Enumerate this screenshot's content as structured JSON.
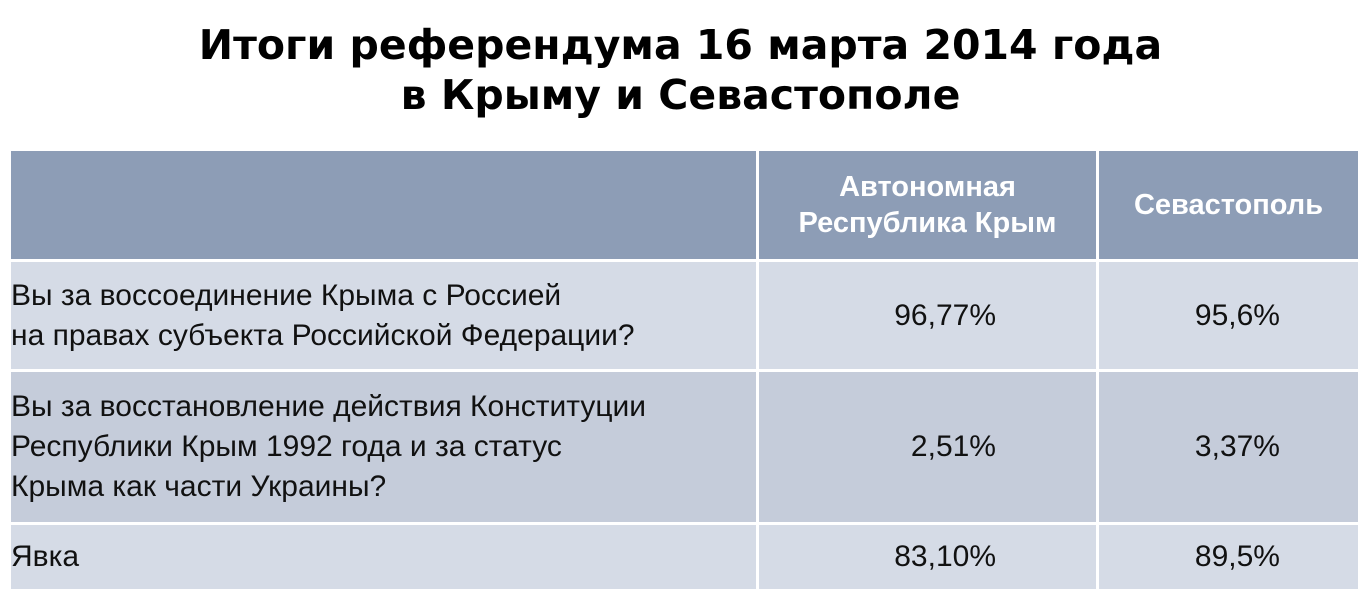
{
  "title": {
    "line1": "Итоги референдума 16 марта 2014 года",
    "line2": "в Крыму и Севастополе"
  },
  "table": {
    "columns": [
      {
        "label": ""
      },
      {
        "label_line1": "Автономная",
        "label_line2": "Республика Крым"
      },
      {
        "label": "Севастополь"
      }
    ],
    "rows": [
      {
        "question_lines": [
          "Вы за воссоединение Крыма с Россией",
          "на правах субъекта Российской Федерации?"
        ],
        "ark": "96,77%",
        "sevastopol": "95,6%"
      },
      {
        "question_lines": [
          "Вы за восстановление действия Конституции",
          "Республики Крым 1992 года и за статус",
          "Крыма как части Украины?"
        ],
        "ark": "2,51%",
        "sevastopol": "3,37%"
      },
      {
        "question_lines": [
          "Явка"
        ],
        "ark": "83,10%",
        "sevastopol": "89,5%"
      }
    ]
  },
  "colors": {
    "header_bg": "#8d9db6",
    "row_light": "#d5dbe6",
    "row_dark": "#c5ccda",
    "header_text": "#ffffff"
  }
}
